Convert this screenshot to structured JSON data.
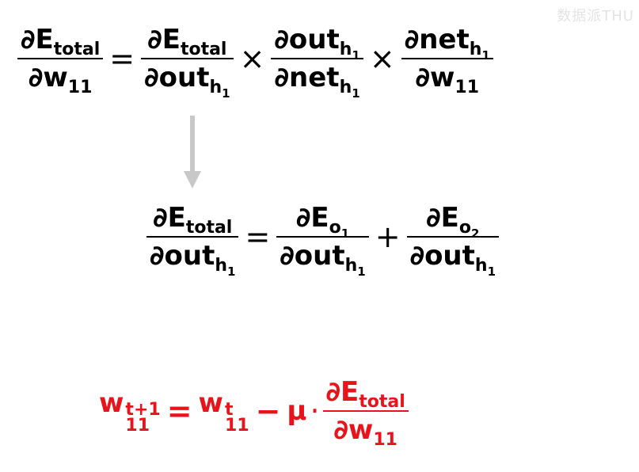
{
  "watermark": "数据派THU",
  "eq1": {
    "lhs": {
      "num": {
        "d": "∂",
        "main": "E",
        "sub": "total"
      },
      "den": {
        "d": "∂",
        "main": "w",
        "sub": "11"
      }
    },
    "eq": "=",
    "t1": {
      "num": {
        "d": "∂",
        "main": "E",
        "sub": "total"
      },
      "den": {
        "d": "∂",
        "main": "out",
        "sub": "h",
        "subsub": "1"
      }
    },
    "times1": "×",
    "t2": {
      "num": {
        "d": "∂",
        "main": "out",
        "sub": "h",
        "subsub": "1"
      },
      "den": {
        "d": "∂",
        "main": "net",
        "sub": "h",
        "subsub": "1"
      }
    },
    "times2": "×",
    "t3": {
      "num": {
        "d": "∂",
        "main": "net",
        "sub": "h",
        "subsub": "1"
      },
      "den": {
        "d": "∂",
        "main": "w",
        "sub": "11"
      }
    }
  },
  "eq2": {
    "lhs": {
      "num": {
        "d": "∂",
        "main": "E",
        "sub": "total"
      },
      "den": {
        "d": "∂",
        "main": "out",
        "sub": "h",
        "subsub": "1"
      }
    },
    "eq": "=",
    "t1": {
      "num": {
        "d": "∂",
        "main": "E",
        "sub": "o",
        "subsub": "1"
      },
      "den": {
        "d": "∂",
        "main": "out",
        "sub": "h",
        "subsub": "1"
      }
    },
    "plus": "+",
    "t2": {
      "num": {
        "d": "∂",
        "main": "E",
        "sub": "o",
        "subsub": "2"
      },
      "den": {
        "d": "∂",
        "main": "out",
        "sub": "h",
        "subsub": "1"
      }
    }
  },
  "eq3": {
    "lhs": {
      "main": "w",
      "sup": "t+1",
      "sub": "11"
    },
    "eq": "=",
    "rhs1": {
      "main": "w",
      "sup": "t",
      "sub": "11"
    },
    "minus": "−",
    "mu": "μ",
    "dot": "·",
    "frac": {
      "num": {
        "d": "∂",
        "main": "E",
        "sub": "total"
      },
      "den": {
        "d": "∂",
        "main": "w",
        "sub": "11"
      }
    }
  },
  "colors": {
    "text": "#000000",
    "update_rule": "#e8141c",
    "arrow": "#c8c8c8"
  }
}
